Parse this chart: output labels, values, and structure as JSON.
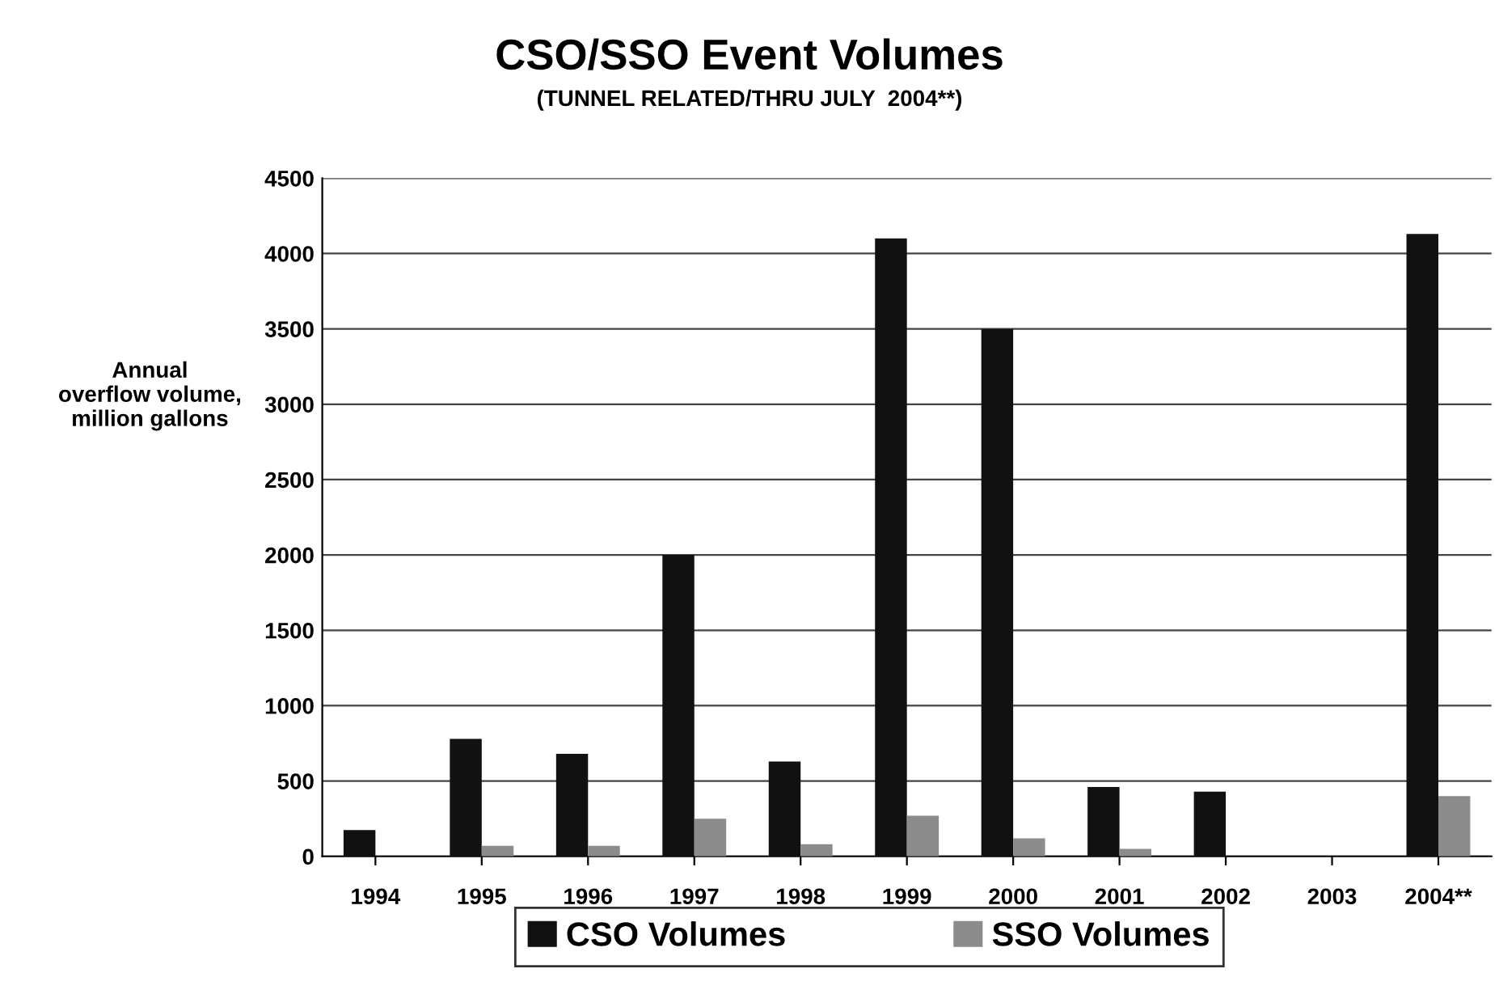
{
  "chart_data": {
    "type": "bar",
    "title": "CSO/SSO Event Volumes",
    "subtitle": "(TUNNEL RELATED/THRU JULY  2004**)",
    "ylabel": "Annual\noverflow volume,\nmillion gallons",
    "categories": [
      "1994",
      "1995",
      "1996",
      "1997",
      "1998",
      "1999",
      "2000",
      "2001",
      "2002",
      "2003",
      "2004**"
    ],
    "series": [
      {
        "name": "CSO Volumes",
        "color": "#111111",
        "values": [
          175,
          780,
          680,
          2000,
          630,
          4100,
          3500,
          460,
          430,
          null,
          4130
        ]
      },
      {
        "name": "SSO Volumes",
        "color": "#8c8c8c",
        "values": [
          null,
          70,
          70,
          250,
          80,
          270,
          120,
          50,
          null,
          null,
          400
        ]
      }
    ],
    "ylim": [
      0,
      4500
    ],
    "yticks": [
      0,
      500,
      1000,
      1500,
      2000,
      2500,
      3000,
      3500,
      4000,
      4500
    ],
    "grid": "y",
    "legend": "bottom"
  }
}
